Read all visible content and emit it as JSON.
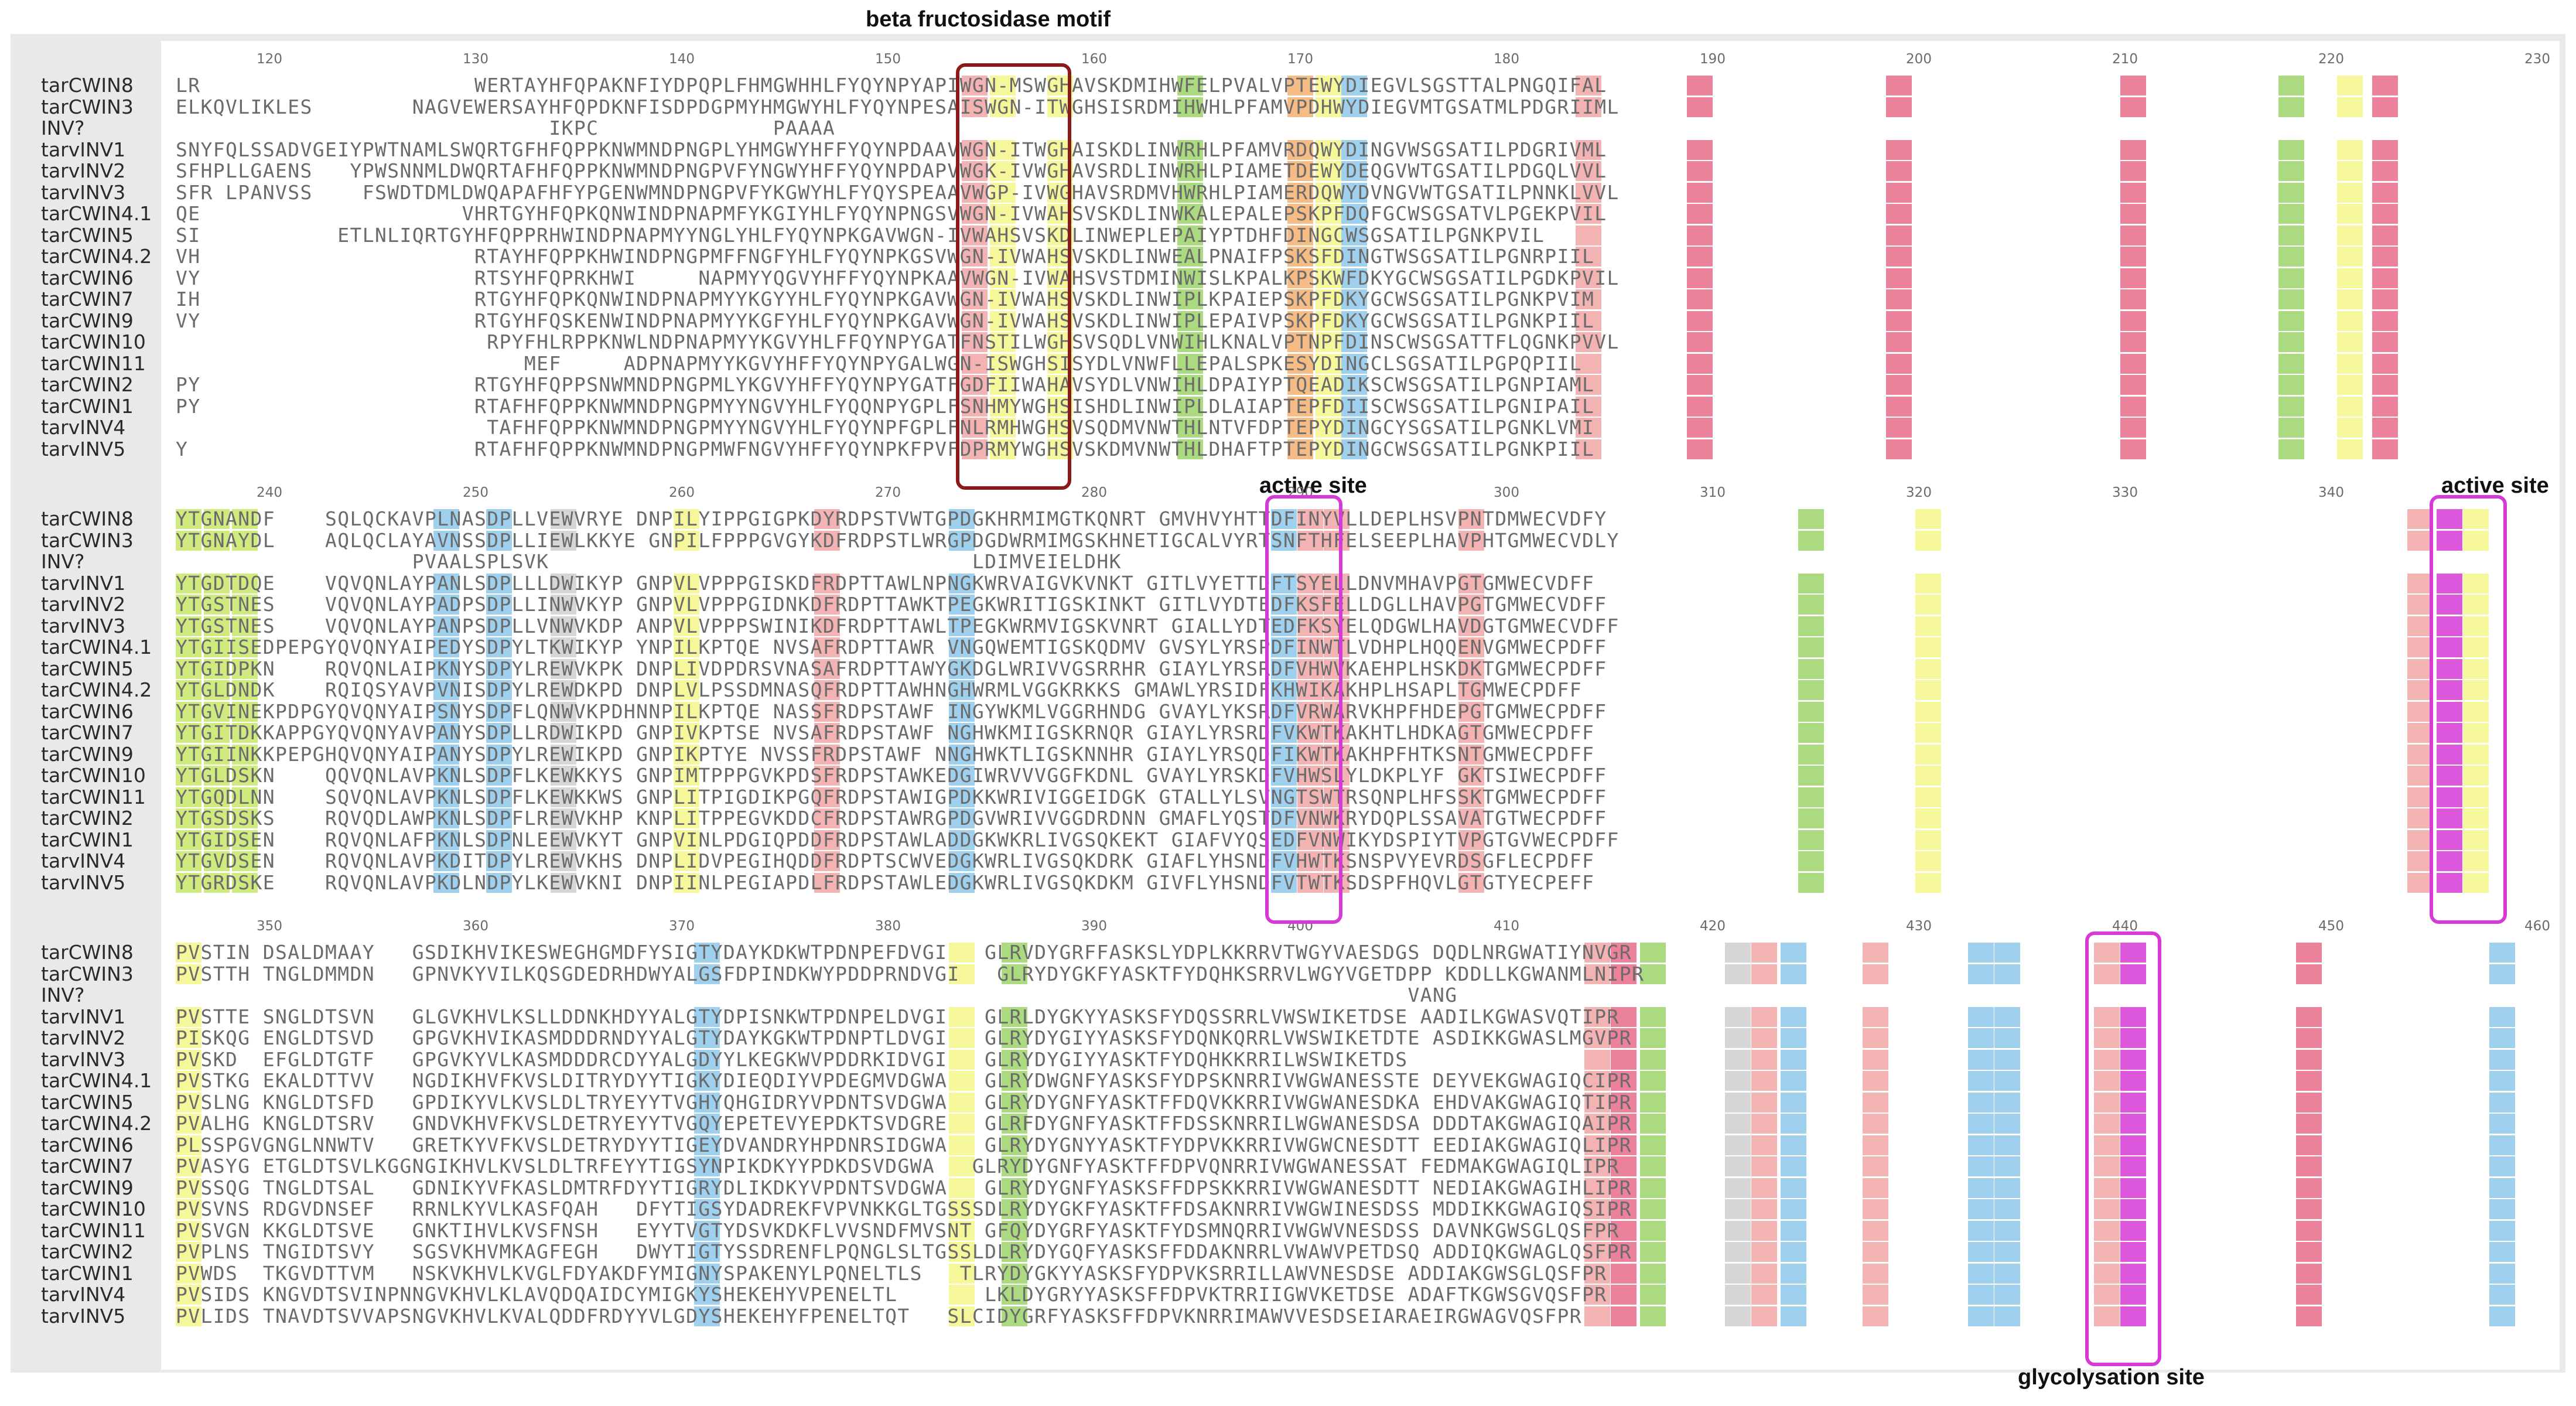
{
  "annotations": {
    "motif": "beta fructosidase motif",
    "active_site_1": "active site",
    "active_site_2": "active site",
    "glycosylation": "glycolysation site"
  },
  "names": [
    "tarCWIN8",
    "tarCWIN3",
    "INV?",
    "tarvINV1",
    "tarvINV2",
    "tarvINV3",
    "tarCWIN4.1",
    "tarCWIN5",
    "tarCWIN4.2",
    "tarCWIN6",
    "tarCWIN7",
    "tarCWIN9",
    "tarCWIN10",
    "tarCWIN11",
    "tarCWIN2",
    "tarCWIN1",
    "tarvINV4",
    "tarvINV5"
  ],
  "blocks": [
    {
      "ticks": [
        "120",
        "130",
        "140",
        "150",
        "160",
        "170",
        "180",
        "190",
        "200",
        "210",
        "220",
        "230"
      ],
      "rows": [
        "LR                      WERTAYHFQPAKNFIYDPQPLFHMGWHHLFYQYNPYAPIWGN-MSWGHAVSKDMIHWFELPVALVPTEWYDIEGVLSGSTTALPNGQIFAL",
        "ELKQVLIKLES        NAGVEWERSAYHFQPDKNFISDPDGPMYHMGWYHLFYQYNPESAISWGN-ITWGHSISRDMIHWHLPFAMVPDHWYDIEGVMTGSATMLPDGRIIML",
        "                              IKPC              PAAAA                                                            ",
        "SNYFQLSSADVGEIYPWTNAMLSWQRTGFHFQPPKNWMNDPNGPLYHMGWYHFFYQYNPDAAVWGN-ITWGHAISKDLINWRHLPFAMVRDQWYDINGVWSGSATILPDGRIVML",
        "SFHPLLGAENS   YPWSNNMLDWQRTAFHFQPPKNWMNDPNGPVFYNGWYHFFYQYNPDAPVWGK-IVWGHAVSRDLINWRHLPIAMETDEWYDEQGVWTGSATILPDGQLVVL",
        "SFR LPANVSS    FSWDTDMLDWQAPAFHFYPGENWMNDPNGPVFYKGWYHLFYQYSPEAAVWGP-IVWGHAVSRDMVHWRHLPIAMERDQWYDVNGVWTGSATILPNNKLVVL",
        "QE                     VHRTGYHFQPKQNWINDPNAPMFYKGIYHLFYQYNPNGSVWGN-IVWAHSVSKDLINWKALEPALEPSKPFDQFGCWSGSATVLPGEKPVIL",
        "SI           ETLNLIQRTGYHFQPPRHWINDPNAPMYYNGLYHLFYQYNPKGAVWGN-IVWAHSVSKDLINWEPLEPAIYPTDHFDINGCWSGSATILPGNKPVIL",
        "VH                      RTAYHFQPPKHWINDPNGPMFFNGFYHLFYQYNPKGSVWGN-IVWAHSVSKDLINWEALPNAIFPSKSFDINGTWSGSATILPGNRPIIL",
        "VY                      RTSYHFQPRKHWI     NAPMYYQGVYHFFYQYNPKAAVWGN-IVWAHSVSTDMINWISLKPALKPSKWFDKYGCWSGSATILPGDKPVIL",
        "IH                      RTGYHFQPKQNWINDPNAPMYYKGYYHLFYQYNPKGAVWGN-IVWAHSVSKDLINWIPLKPAIEPSKPFDKYGCWSGSATILPGNKPVIM",
        "VY                      RTGYHFQSKENWINDPNAPMYYKGFYHLFYQYNPKGAVWGN-IVWAHSVSKDLINWIPLEPAIVPSKPFDKYGCWSGSATILPGNKPIIL",
        "                         RPYFHLRPPKNWLNDPNAPMYYKGVYHLFFQYNPYGATFNSTILWGHSVSQDLVNWIHLKNALVPTNPFDINSCWSGSATTFLQGNKPVVL",
        "                            MEF     ADPNAPMYYKGVYHFFYQYNPYGALWGN-ISWGHSISYDLVNWFLLEPALSPKESYDINGCLSGSATILPGPQPIIL",
        "PY                      RTGYHFQPPSNWMNDPNGPMLYKGVYHFFYQYNPYGATFGDFIIWAHAVSYDLVNWIHLDPAIYPTQEADIKSCWSGSATILPGNPIAML",
        "PY                      RTAFHFQPPKNWMNDPNGPMYYNGVYHLFYQQNPYGPLFSNHMYWGHSISHDLINWIPLDLAIAPTEPFDIISCWSGSATILPGNIPAIL",
        "                         TAFHFQPPKNWMNDPNGPMYYNGVYHLFYQYNPFGPLFNLRMHWGHSVSQDMVNWTHLNTVFDPTEPYDINGCYSGSATILPGNKLVMI",
        "Y                       RTAFHFQPPKNWMNDPNGPMWFNGVYHFFYQYNPKFPVFDPRMYWGHSVSKDMVNWTHLDHAFTPTEPYDINGCWSGSATILPGNKPIIL"
      ]
    },
    {
      "ticks": [
        "240",
        "250",
        "260",
        "270",
        "280",
        "290",
        "300",
        "310",
        "320",
        "330",
        "340"
      ],
      "rows": [
        "YTGNANDF    SQLQCKAVPLNASDPLLVEWVRYE DNPILYIPPGIGPKDYRDPSTVWTGPDGKHRMIMGTKQNRT GMVHVYHTTDFINYVLLDEPLHSVPNTDMWECVDFY",
        "YTGNAYDL    AQLQCLAYAVNSSDPLLIEWLKKYE GNPILFPPPGVGYKDFRDPSTLWRGPDGDWRMIMGSKHNETIGCALVYRTSNFTHFELSEEPLHAVPHTGMWECVDLY",
        "                   PVAALSPLSVK                                  LDIMVEIELDHK                                         ",
        "YTGDTDQE    VQVQNLAYPANLSDPLLLDWIKYP GNPVLVPPPGISKDFRDPTTAWLNPNGKWRVAIGVKVNKT GITLVYETTDFTSYELLDNVMHAVPGTGMWECVDFF",
        "YTGSTNES    VQVQNLAYPADPSDPLLINWVKYP GNPVLVPPPGIDNKDFRDPTTAWKTPEGKWRITIGSKINKT GITLVYDTEDFKSFELLDGLLHAVPGTGMWECVDFF",
        "YTGSTNES    VQVQNLAYPANPSDPLLVNWVKDP ANPVLVPPPSWINIKDFRDPTTAWLTPEGKWRMVIGSKVNRT GIALLYDTEDFKSYELQDGWLHAVDGTGMWECVDFF",
        "YTGIISEDPEPGYQVQNYAIPEDYSDPYLTKWIKYP YNPILKPTQE NVSAFRDPTTAWR VNGQWEMTIGSKQDMV GVSYLYRSPDFINWTLVDHPLHQQENVGMWECPDFF",
        "YTGIDPKN    RQVQNLAIPKNYSDPYLREWVKPK DNPLIVDPDRSVNASAFRDPTTAWYGKDGLWRIVVGSRRHR GIAYLYRSRDFVHWVKAEHPLHSKDKTGMWECPDFF",
        "YTGLDNDK    RQIQSYAVPVNISDPYLREWDKPD DNPLVLPSSDMNASQFRDPTTAWHNGHWRMLVGGKRKKS GMAWLYRSIDFKHWIKAKHPLHSAPLTGMWECPDFF",
        "YTGVINEKPDPGYQVQNYAIPSNYSDPFLQNWVKPDHNNPILKPTQE NASSFRDPSTAWF INGYWKMLVGGRHNDG GVAYLYKSRDFVRWARVKHPFHDEPGTGMWECPDFF",
        "YTGITDKKAPPGYQVQNYAVPANYSDPLLRDWIKPD GNPIVKPTSE NVSAFRDPSTAWF NGHWKMIIGSKRNQR GIAYLYRSRDFVKWTKAKHTLHDKAGTGMWECPDFF",
        "YTGIINKKPEPGHQVQNYAIPANYSDPYLREWIKPD GNPIKPTYE NVSSFRDPSTAWF NNGHWKTLIGSKNNHR GIAYLYRSQDFIKWTKAKHPFHTKSNTGMWECPDFF",
        "YTGLDSKN    QQVQNLAVPKNLSDPFLKEWKKYS GNPIMTPPPGVKPDSFRDPSTAWKEDGIWRVVVGGFKDNL GVAYLYRSKDFVHWSLYLDKPLYF GKTSIWECPDFF",
        "YTGQDLNN    SQVQNLAVPKNLSDPFLKEWKKWS GNPLITPIGDIKPGQFRDPSTAWIGPDKKWRIVIGGEIDGK GTALLYLSVNGTSWTRSQNPLHFSSKTGMWECPDFF",
        "YTGSDSKS    RQVQDLAWPKNLSDPFLREWVKHP KNPLITPPEGVKDDCFRDPSTAWRGPDGVWRIVVGGDRDNN GMAFLYQSTDFVNWKRYDQPLSSAVATGTWECPDFF",
        "YTGIDSEN    RQVQNLAFPKNLSDPNLEEWVKYT GNPVINLPDGIQPDDFRDPSTAWLADDGKWKRLIVGSQKEKT GIAFVYQSEDFVNWIKYDSPIYTVPGTGVWECPDFF",
        "YTGVDSEN    RQVQNLAVPKDITDPYLREWVKHS DNPLIDVPEGIHQDDFRDPTSCWVEDGKWRLIVGSQKDRK GIAFLYHSNDFVHWTKSNSPVYEVRDSGFLECPDFF",
        "YTGRDSKE    RQVQNLAVPKDLNDPYLKEWVKNI DNPIINLPEGIAPDLFRDPSTAWLEDGKWRLIVGSQKDKM GIVFLYHSNDFVTWTKSDSPFHQVLGTGTYECPEFF"
      ]
    },
    {
      "ticks": [
        "350",
        "360",
        "370",
        "380",
        "390",
        "400",
        "410",
        "420",
        "430",
        "440",
        "450",
        "460"
      ],
      "rows": [
        "PVSTIN DSALDMAAY   GSDIKHVIKESWEGHGMDFYSIGTYDAYKDKWTPDNPEFDVGI   GLRVDYGRFFASKSLYDPLKKRRVTWGYVAESDGS DQDLNRGWATIYNVGR",
        "PVSTTH TNGLDMMDN   GPNVKYVILKQSGDEDRHDWYALGSFDPINDKWYPDDPRNDVGI   GLRYDYGKFYASKTFYDQHKSRRVLWGYVGETDPP KDDLLKGWANMLNIPR",
        "                                                                                                   VANG               ",
        "PVSTTE SNGLDTSVN   GLGVKHVLKSLLDDNKHDYYALGTYDPISNKWTPDNPELDVGI   GLRLDYGKYYASKSFYDQSSRRLVWSWIKETDSE AADILKGWASVQTIPR",
        "PISKQG ENGLDTSVD   GPGVKHVIKASMDDDRNDYYALGTYDAYKGKWTPDNPTLDVGI   GLRYDYGIYYASKSFYDQNKQRRLVWSWIKETDTE ASDIKKGWASLMGVPR",
        "PVSKD  EFGLDTGTF   GPGVKYVLKASMDDDRCDYYALGDYYLKEGKWVPDDRKIDVGI   GLRYDYGIYYASKTFYDQHKKRRILWSWIKETDS                 ",
        "PVSTKG EKALDTTVV   NGDIKHVFKVSLDITRYDYYTIGKYDIEQDIYVPDEGMVDGWA   GLRYDWGNFYASKSFYDPSKNRRIVWGWANESSTE DEYVEKGWAGIQCIPR",
        "PVSLNG KNGLDTSFD   GPDIKYVLKVSLDLTRYEYYTVGHYQHGIDRYVPDNTSVDGWA   GLRYDYGNFYASKTFFDQVKKRRIVWGWANESDKA EHDVAKGWAGIQTIPR",
        "PVALHG KNGLDTSRV   GNDVKHVFKVSLDETRYEYYTVGQYEPETEVYEPDKTSVDGRE   GLRFDYGNFYASKTFFDSSKNRRILWGWANESDSA DDDTAKGWAGIQAIPR",
        "PLSSPGVGNGLNNWTV   GRETKYVFKVSLDETRYDYYTIGEYDVANDRYHPDNRSIDGWA   GLRYDYGNYYASKTFYDPVKKRRIVWGWCNESDTT EEDIAKGWAGIQLIPR",
        "PVASYG ETGLDTSVLKGGNGIKHVLKVSLDLTRFEYYTIGSYNPIKDKYYPDKDSVDGWA   GLRYDYGNFYASKTFFDPVQNRRIVWGWANESSAT FEDMAKGWAGIQLIPR",
        "PVSSQG TNGLDTSAL   GDNIKYVFKASLDMTRFDYYTIGRYDLIKDKYVPDNTSVDGWA   GLRYDYGNFYASKSFFDPSKKRRIVWGWANESDTT NEDIAKGWAGIHLIPR",
        "PVSVNS RDGVDNSEF   RRNLKYVLKASFQAH   DFYTIGSYDADREKFVPVNKKGLTGSSSDLRYDYGKFYASKTFFDSAKNRRIVWGWINESDSS MDDIKKGWAGIQSIPR",
        "PVSVGN KKGLDTSVE   GNKTIHVLKVSFNSH   EYYTVGTYDSVKDKFLVVSNDFMVSNT GFQYDYGRFYASKTFYDSMNQRRIVWGWVNESDSS DAVNKGWSGLQSFPR",
        "PVPLNS TNGIDTSVY   SGSVKHVMKAGFEGH   DWYTIGTYSSDRENFLPQNGLSLTGSSLDLRYDYGQFYASKSFFDDAKNRRLVWAWVPETDSQ ADDIQKGWAGLQSFPR",
        "PVWDS  TKGVDTTVM   NSKVKHVLKVGLFDYAKDFYMIGNYSPAKENYLPQNELTLS   TLRYDYGKYYASKSFYDPVKSRRILLAWVNESDSE ADDIAKGWSGLQSFPR",
        "PVSIDS KNGVDTSVINPNNGVKHVLKLAVQDQAIDCYMIGKYSHEKEHYVPENELTL       LKLDYGRYYASKSFFDPVKTRRIIGWVKETDSE ADAFTKGWSGVQSFPR",
        "PVLIDS TNAVDTSVVAPSNGVKHVLKVALQDDFRDYYVLGDYSHEKEHYFPENELTQT   SLCIDYGRFYASKSFFDPVKNRRIMAWVVESDSEIARAEIRGWAGVQSFPR"
      ]
    }
  ]
}
